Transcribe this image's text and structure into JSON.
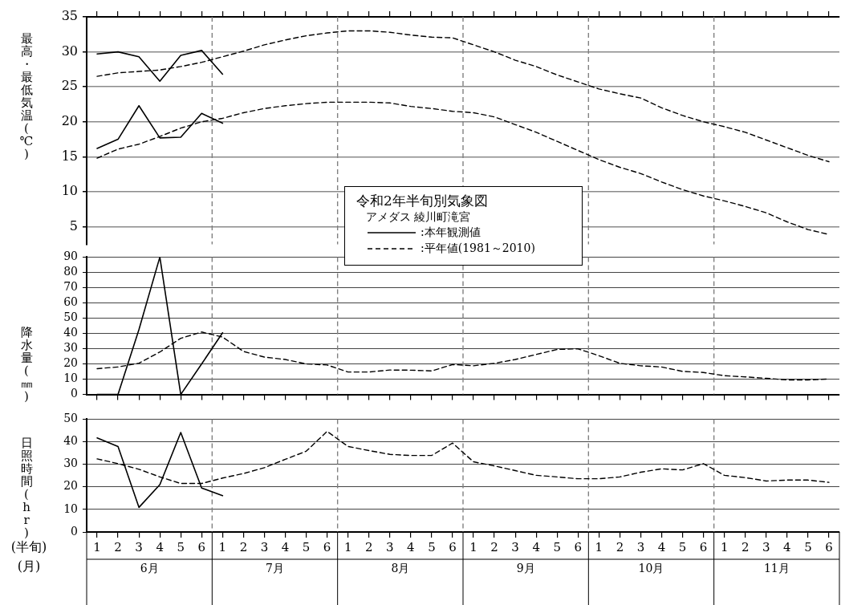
{
  "chart_data": [
    {
      "type": "line",
      "title": "令和2年半旬別気象図",
      "subtitle": "アメダス 綾川町滝宮",
      "ylabel": "最高・最低気温(℃)",
      "categories": [
        "1",
        "2",
        "3",
        "4",
        "5",
        "6",
        "1",
        "2",
        "3",
        "4",
        "5",
        "6",
        "1",
        "2",
        "3",
        "4",
        "5",
        "6",
        "1",
        "2",
        "3",
        "4",
        "5",
        "6",
        "1",
        "2",
        "3",
        "4",
        "5",
        "6",
        "1",
        "2",
        "3",
        "4",
        "5",
        "6"
      ],
      "series": [
        {
          "name": ":本年観測値",
          "color": "#000000",
          "line_style": "solid",
          "values": [
            29.7,
            30.0,
            29.3,
            25.8,
            29.5,
            30.2,
            26.8,
            null,
            null,
            null,
            null,
            null,
            null,
            null,
            null,
            null,
            null,
            null,
            null,
            null,
            null,
            null,
            null,
            null,
            null,
            null,
            null,
            null,
            null,
            null,
            null,
            null,
            null,
            null,
            null,
            null
          ]
        },
        {
          "name": ":平年値(1981～2010)",
          "color": "#000000",
          "line_style": "dashed",
          "values": [
            26.5,
            27.0,
            27.2,
            27.4,
            27.9,
            28.5,
            29.3,
            30.1,
            31.0,
            31.7,
            32.3,
            32.7,
            33.0,
            33.0,
            32.8,
            32.4,
            32.1,
            32.0,
            31.0,
            30.0,
            28.8,
            27.9,
            26.7,
            25.7,
            24.7,
            24.0,
            23.4,
            22.0,
            20.9,
            20.0,
            19.3,
            18.5,
            17.4,
            16.3,
            15.2,
            14.3
          ]
        },
        {
          "color": "#000000",
          "line_style": "solid",
          "values": [
            16.2,
            17.5,
            22.3,
            17.7,
            17.8,
            21.2,
            19.8,
            null,
            null,
            null,
            null,
            null,
            null,
            null,
            null,
            null,
            null,
            null,
            null,
            null,
            null,
            null,
            null,
            null,
            null,
            null,
            null,
            null,
            null,
            null,
            null,
            null,
            null,
            null,
            null,
            null
          ]
        },
        {
          "color": "#000000",
          "line_style": "dashed",
          "values": [
            14.8,
            16.1,
            16.8,
            17.9,
            19.1,
            20.0,
            20.5,
            21.3,
            21.9,
            22.3,
            22.6,
            22.8,
            22.8,
            22.8,
            22.7,
            22.2,
            21.9,
            21.5,
            21.3,
            20.7,
            19.6,
            18.5,
            17.2,
            15.9,
            14.6,
            13.5,
            12.6,
            11.4,
            10.3,
            9.4,
            8.7,
            7.9,
            7.0,
            5.7,
            4.6,
            3.9
          ]
        }
      ],
      "ylim": [
        2.5,
        35
      ],
      "yticks": [
        5,
        10,
        15,
        20,
        25,
        30,
        35
      ],
      "tick_labels": "y",
      "grid": "y",
      "legend": "bottom",
      "marker": "none"
    },
    {
      "type": "line",
      "ylabel": "降水量(㎜)",
      "categories": [
        "1",
        "2",
        "3",
        "4",
        "5",
        "6",
        "1",
        "2",
        "3",
        "4",
        "5",
        "6",
        "1",
        "2",
        "3",
        "4",
        "5",
        "6",
        "1",
        "2",
        "3",
        "4",
        "5",
        "6",
        "1",
        "2",
        "3",
        "4",
        "5",
        "6",
        "1",
        "2",
        "3",
        "4",
        "5",
        "6"
      ],
      "series": [
        {
          "color": "#000000",
          "line_style": "solid",
          "values": [
            0,
            0,
            42.5,
            90,
            0,
            20.0,
            40.4,
            null,
            null,
            null,
            null,
            null,
            null,
            null,
            null,
            null,
            null,
            null,
            null,
            null,
            null,
            null,
            null,
            null,
            null,
            null,
            null,
            null,
            null,
            null,
            null,
            null,
            null,
            null,
            null,
            null
          ]
        },
        {
          "color": "#000000",
          "line_style": "dashed",
          "values": [
            16.9,
            18.0,
            20.5,
            27.8,
            36.8,
            40.9,
            37.6,
            28.2,
            24.5,
            22.9,
            20.0,
            19.3,
            14.7,
            14.7,
            16.0,
            15.9,
            15.4,
            19.6,
            18.8,
            20.4,
            22.9,
            26.2,
            29.5,
            29.9,
            25.4,
            20.4,
            18.8,
            18.0,
            15.1,
            14.4,
            12.3,
            11.5,
            10.6,
            9.5,
            9.5,
            10.1
          ]
        }
      ],
      "ylim": [
        0,
        90
      ],
      "yticks": [
        0,
        10,
        20,
        30,
        40,
        50,
        60,
        70,
        80,
        90
      ],
      "tick_labels": "y",
      "grid": "y",
      "marker": "none"
    },
    {
      "type": "line",
      "ylabel": "日照時間(hr)",
      "xlabel": "(半旬)",
      "annotations": [
        "(月)",
        "6月",
        "7月",
        "8月",
        "9月",
        "10月",
        "11月"
      ],
      "categories": [
        "1",
        "2",
        "3",
        "4",
        "5",
        "6",
        "1",
        "2",
        "3",
        "4",
        "5",
        "6",
        "1",
        "2",
        "3",
        "4",
        "5",
        "6",
        "1",
        "2",
        "3",
        "4",
        "5",
        "6",
        "1",
        "2",
        "3",
        "4",
        "5",
        "6",
        "1",
        "2",
        "3",
        "4",
        "5",
        "6"
      ],
      "series": [
        {
          "color": "#000000",
          "line_style": "solid",
          "values": [
            41.7,
            37.9,
            10.9,
            21.0,
            44.1,
            19.5,
            16.1,
            null,
            null,
            null,
            null,
            null,
            null,
            null,
            null,
            null,
            null,
            null,
            null,
            null,
            null,
            null,
            null,
            null,
            null,
            null,
            null,
            null,
            null,
            null,
            null,
            null,
            null,
            null,
            null,
            null
          ]
        },
        {
          "color": "#000000",
          "line_style": "dashed",
          "values": [
            32.4,
            30.3,
            27.8,
            24.4,
            21.5,
            21.5,
            23.9,
            25.9,
            28.5,
            32.2,
            35.8,
            44.6,
            37.9,
            36.1,
            34.4,
            33.9,
            33.9,
            39.4,
            31.1,
            29.3,
            27.2,
            25.1,
            24.4,
            23.6,
            23.6,
            24.4,
            26.5,
            28.0,
            27.5,
            30.3,
            25.1,
            24.1,
            22.6,
            23.0,
            23.0,
            22.0
          ]
        }
      ],
      "ylim": [
        0,
        50
      ],
      "yticks": [
        0,
        10,
        20,
        30,
        40,
        50
      ],
      "grid": "y",
      "marker": "none"
    }
  ]
}
